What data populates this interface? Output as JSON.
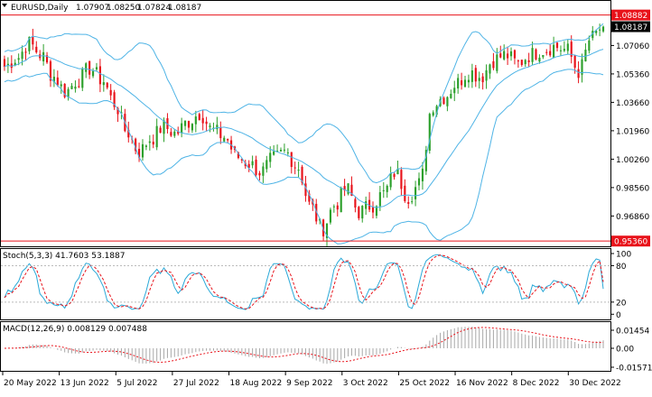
{
  "header": {
    "symbol": "EURUSD,Daily",
    "ohlc": [
      "1.07907",
      "1.08250",
      "1.07824",
      "1.08187"
    ]
  },
  "colors": {
    "bull": "#2ca02c",
    "bear": "#e8121a",
    "band": "#4fb4e6",
    "hline": "#e8121a",
    "stoch_main": "#2aa9d8",
    "stoch_signal": "#e8121a",
    "macd_hist": "#a8a8a8",
    "macd_signal": "#e8121a",
    "price_tag": "#000000"
  },
  "price_panel": {
    "hlines": [
      {
        "value": 1.08882,
        "label": "1.08882"
      },
      {
        "value": 0.9536,
        "label": "0.95360"
      }
    ],
    "current_price": {
      "value": 1.08187,
      "label": "1.08187"
    },
    "axis_ticks": [
      {
        "value": 1.0706,
        "label": "1.07060"
      },
      {
        "value": 1.0536,
        "label": "1.05360"
      },
      {
        "value": 1.0366,
        "label": "1.03660"
      },
      {
        "value": 1.0196,
        "label": "1.01960"
      },
      {
        "value": 1.0026,
        "label": "1.00260"
      },
      {
        "value": 0.9856,
        "label": "0.98560"
      },
      {
        "value": 0.9686,
        "label": "0.96860"
      }
    ]
  },
  "stoch_panel": {
    "title": "Stoch(5,3,3) 41.7603 53.1887",
    "axis_ticks": [
      {
        "value": 100,
        "label": "100"
      },
      {
        "value": 80,
        "label": "80"
      },
      {
        "value": 20,
        "label": "20"
      },
      {
        "value": 0,
        "label": "0"
      }
    ]
  },
  "macd_panel": {
    "title": "MACD(12,26,9) 0.008129 0.007488",
    "axis_ticks": [
      {
        "value": 0.01454,
        "label": "0.01454"
      },
      {
        "value": 0.0,
        "label": "0.00"
      },
      {
        "value": -0.015712,
        "label": "-0.015712"
      }
    ]
  },
  "x_labels": [
    "20 May 2022",
    "13 Jun 2022",
    "5 Jul 2022",
    "27 Jul 2022",
    "18 Aug 2022",
    "9 Sep 2022",
    "3 Oct 2022",
    "25 Oct 2022",
    "16 Nov 2022",
    "8 Dec 2022",
    "30 Dec 2022"
  ],
  "chart_data": {
    "type": "candlestick",
    "symbol": "EURUSD",
    "timeframe": "Daily",
    "x_start": "20 May 2022",
    "x_end": "13 Jan 2023",
    "close_anchors": [
      1.058,
      1.063,
      1.072,
      1.065,
      1.052,
      1.043,
      1.05,
      1.057,
      1.05,
      1.036,
      1.019,
      1.007,
      1.015,
      1.022,
      1.018,
      1.025,
      1.03,
      1.02,
      1.016,
      1.004,
      1.0,
      0.995,
      1.003,
      1.007,
      0.998,
      0.975,
      0.961,
      0.975,
      0.985,
      0.971,
      0.975,
      0.982,
      0.995,
      0.98,
      0.988,
      1.035,
      1.04,
      1.048,
      1.055,
      1.052,
      1.062,
      1.065,
      1.06,
      1.065,
      1.068,
      1.07,
      1.068,
      1.055,
      1.075,
      1.082
    ],
    "latest": {
      "open": 1.07907,
      "high": 1.0825,
      "low": 1.07824,
      "close": 1.08187
    },
    "indicators": {
      "bollinger_bands": true,
      "stochastic": {
        "params": "5,3,3",
        "main": 41.7603,
        "signal": 53.1887
      },
      "macd": {
        "params": "12,26,9",
        "macd": 0.008129,
        "signal": 0.007488
      }
    }
  }
}
